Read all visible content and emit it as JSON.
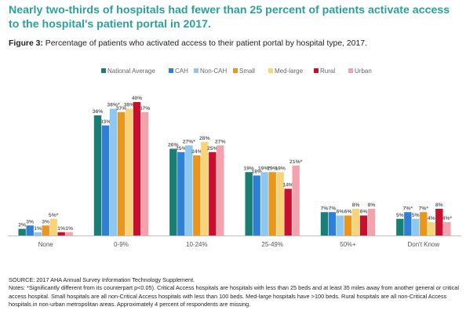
{
  "headline": "Nearly two-thirds of hospitals had fewer than 25 percent of patients activate access to the hospital's patient portal in 2017.",
  "figure": {
    "label": "Figure 3:",
    "caption": "Percentage of patients who activated access to their patient portal by hospital type, 2017."
  },
  "notes": {
    "source": "SOURCE: 2017 AHA Annual Survey Information Technology Supplement.",
    "notes": "Notes: *Significantly different from its counterpart p<0.05). Critical Access hospitals are hospitals with less than 25 beds and at least 35 miles away from another general or critical access hospital. Small hospitals are all non-Critical Access hospitals with less than 100 beds. Med-large hospitals have >100 beds. Rural hospitals are all non-Critical Access hospitals in non-urban metropolitan areas. Approximately 4 percent of respondents are missing."
  },
  "chart_data": {
    "type": "bar",
    "categories": [
      "None",
      "0-9%",
      "10-24%",
      "25-49%",
      "50%+",
      "Don't Know"
    ],
    "series": [
      {
        "name": "National Average",
        "color": "#1a7f73",
        "values": [
          2,
          36,
          26,
          19,
          7,
          5
        ],
        "labels": [
          "2%",
          "36%",
          "26%",
          "19%",
          "7%",
          "5%"
        ]
      },
      {
        "name": "CAH",
        "color": "#2f7fd4",
        "values": [
          3,
          33,
          25,
          18,
          7,
          7
        ],
        "labels": [
          "3%",
          "33%",
          "25%",
          "18%",
          "7%",
          "7%*"
        ]
      },
      {
        "name": "Non-CAH",
        "color": "#8cc8f2",
        "values": [
          1,
          38,
          27,
          19,
          6,
          5
        ],
        "labels": [
          "1%",
          "38%*",
          "27%*",
          "19%*",
          "6%",
          "5%"
        ]
      },
      {
        "name": "Small",
        "color": "#e8961c",
        "values": [
          3,
          37,
          24,
          19,
          6,
          7
        ],
        "labels": [
          "3%",
          "37%",
          "24%",
          "19%",
          "6%",
          "7%*"
        ]
      },
      {
        "name": "Med-large",
        "color": "#f7d47a",
        "values": [
          5,
          38,
          28,
          19,
          8,
          4
        ],
        "labels": [
          "5%*",
          "38%",
          "28%",
          "19%",
          "8%",
          "4%"
        ]
      },
      {
        "name": "Rural",
        "color": "#c8102e",
        "values": [
          1,
          40,
          25,
          14,
          6,
          8
        ],
        "labels": [
          "1%",
          "40%",
          "25%",
          "14%",
          "6%",
          "8%"
        ]
      },
      {
        "name": "Urban",
        "color": "#f4a3ae",
        "values": [
          1,
          37,
          27,
          21,
          8,
          4
        ],
        "labels": [
          "1%",
          "37%",
          "27%",
          "21%*",
          "8%",
          "4%*"
        ]
      }
    ],
    "ylim": [
      0,
      40
    ],
    "grid": false,
    "legend": "top-right",
    "xlabel": "",
    "ylabel": ""
  }
}
